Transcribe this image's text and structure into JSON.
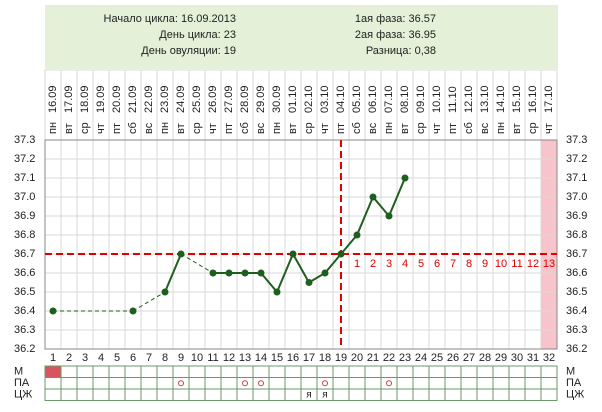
{
  "info": {
    "cycle_start": "Начало цикла: 16.09.2013",
    "cycle_day": "День цикла: 23",
    "ovulation_day": "День овуляции: 19",
    "phase1": "1ая фаза: 36.57",
    "phase2": "2ая фаза: 36.95",
    "difference": "Разница: 0,38"
  },
  "chart_data": {
    "type": "line",
    "x": [
      1,
      2,
      3,
      4,
      5,
      6,
      7,
      8,
      9,
      10,
      11,
      12,
      13,
      14,
      15,
      16,
      17,
      18,
      19,
      20,
      21,
      22,
      23,
      24,
      25,
      26,
      27,
      28,
      29,
      30,
      31,
      32
    ],
    "dates": [
      "16.09",
      "17.09",
      "18.09",
      "19.09",
      "20.09",
      "21.09",
      "22.09",
      "23.09",
      "24.09",
      "25.09",
      "26.09",
      "27.09",
      "28.09",
      "29.09",
      "30.09",
      "01.10",
      "02.10",
      "03.10",
      "04.10",
      "05.10",
      "06.10",
      "07.10",
      "08.10",
      "09.10",
      "10.10",
      "11.10",
      "12.10",
      "13.10",
      "14.10",
      "15.10",
      "16.10",
      "17.10"
    ],
    "weekdays": [
      "пн",
      "вт",
      "ср",
      "чт",
      "пт",
      "сб",
      "вс",
      "пн",
      "вт",
      "ср",
      "чт",
      "пт",
      "сб",
      "вс",
      "пн",
      "вт",
      "ср",
      "чт",
      "пт",
      "сб",
      "вс",
      "пн",
      "вт",
      "ср",
      "чт",
      "пт",
      "сб",
      "вс",
      "пн",
      "вт",
      "ср",
      "чт"
    ],
    "series": [
      {
        "name": "temperature",
        "color": "#1e5e1e",
        "values": [
          36.4,
          null,
          null,
          null,
          null,
          36.4,
          null,
          36.5,
          36.7,
          null,
          36.6,
          36.6,
          36.6,
          36.6,
          36.5,
          36.7,
          36.55,
          36.6,
          36.7,
          36.8,
          37.0,
          36.9,
          37.1,
          null,
          null,
          null,
          null,
          null,
          null,
          null,
          null,
          null
        ]
      }
    ],
    "ylim": [
      36.2,
      37.3
    ],
    "yticks": [
      36.2,
      36.3,
      36.4,
      36.5,
      36.6,
      36.7,
      36.8,
      36.9,
      {
        "value": 37,
        "label": "37.0"
      },
      37.1,
      37.2,
      37.3
    ],
    "grid": true,
    "coverline": 36.7,
    "coverline_color": "#e00000",
    "ovulation_day": 19,
    "phase2_days": [
      1,
      2,
      3,
      4,
      5,
      6,
      7,
      8,
      9,
      10,
      11,
      12,
      13
    ],
    "highlight_day": 32,
    "highlight_color": "#f8c4cc",
    "rows": [
      {
        "label": "М",
        "filled_days": [
          1
        ],
        "fill": "#d9545e"
      },
      {
        "label": "ПА",
        "circle_days": [
          9,
          13,
          14,
          18,
          22
        ]
      },
      {
        "label": "ЦЖ",
        "notes": [
          {
            "day": 17,
            "label": "я"
          },
          {
            "day": 18,
            "label": "я"
          }
        ]
      }
    ]
  }
}
